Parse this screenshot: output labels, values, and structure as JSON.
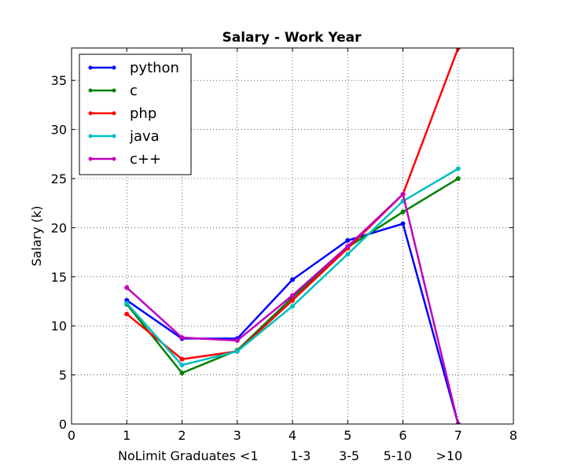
{
  "chart_data": {
    "type": "line",
    "title": "Salary - Work Year",
    "xlabel": "NoLimit Graduates <1        1-3       3-5      5-10      >10",
    "ylabel": "Salary (k)",
    "xlim": [
      0,
      8
    ],
    "ylim": [
      0,
      38.3
    ],
    "xticks": [
      0,
      1,
      2,
      3,
      4,
      5,
      6,
      7,
      8
    ],
    "yticks": [
      0,
      5,
      10,
      15,
      20,
      25,
      30,
      35
    ],
    "grid": true,
    "legend_position": "top-left",
    "x": [
      1,
      2,
      3,
      4,
      5,
      6,
      7
    ],
    "series": [
      {
        "name": "python",
        "color": "#0000ff",
        "values": [
          12.6,
          8.7,
          8.7,
          14.7,
          18.7,
          20.4,
          0
        ]
      },
      {
        "name": "c",
        "color": "#008000",
        "values": [
          12.2,
          5.2,
          7.5,
          12.9,
          18.0,
          21.6,
          25.0
        ]
      },
      {
        "name": "php",
        "color": "#ff0000",
        "values": [
          11.2,
          6.6,
          7.4,
          12.6,
          17.9,
          23.4,
          38.3
        ]
      },
      {
        "name": "java",
        "color": "#00bfbf",
        "values": [
          12.3,
          6.0,
          7.4,
          12.0,
          17.3,
          22.7,
          26.0
        ]
      },
      {
        "name": "c++",
        "color": "#bf00bf",
        "values": [
          13.9,
          8.8,
          8.5,
          13.1,
          18.1,
          23.4,
          0
        ]
      }
    ]
  }
}
